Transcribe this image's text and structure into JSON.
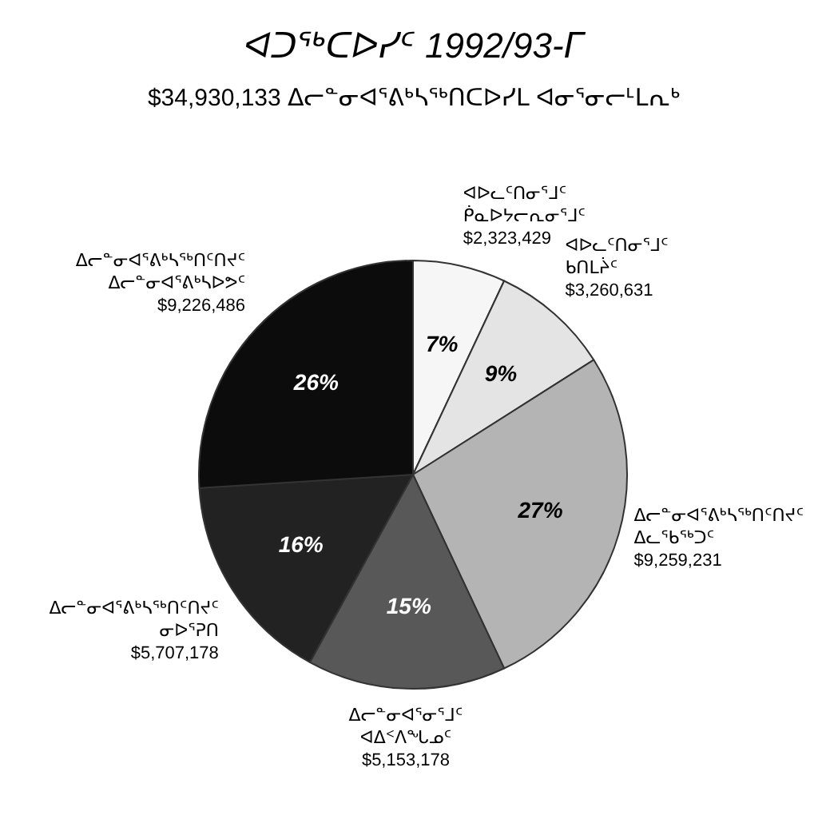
{
  "chart_data": {
    "type": "pie",
    "title": "ᐊᑐᖅᑕᐅᓯᑦ 1992/93-ᒥ",
    "subtitle": "$34,930,133 ᐃᓕᓐᓂᐊᕐᕕᒃᓴᖅᑎᑕᐅᓯᒪ ᐊᓂᕐᓂᓕᒻᒪᕆᒃ",
    "categories": [
      "ᐊᐅᓚᑦᑎᓂᕐᒧᑦ\nᑮᓇᐅᔭᓕᕆᓂᕐᒧᑦ\n$2,323,429",
      "ᐊᐅᓚᑦᑎᓂᕐᒧᑦ\nᑲᑎᒪᔩᑦ\n$3,260,631",
      "ᐃᓕᓐᓂᐊᕐᕕᒃᓴᖅᑎᑦᑎᔪᑦ\nᐃᓚᖃᖅᑐᑦ\n$9,259,231",
      "ᐃᓕᓐᓂᐊᕐᓂᕐᒧᑦ\nᐊᐃᑉᐱᖓᓄᑦ\n$5,153,178",
      "ᐃᓕᓐᓂᐊᕐᕕᒃᓴᖅᑎᑦᑎᔪᑦ\nᓂᐅᕐᕈᑎ\n$5,707,178",
      "ᐃᓕᓐᓂᐊᕐᕕᒃᓴᖅᑎᑦᑎᔪᑦ\nᐃᓕᓐᓂᐊᕐᕕᒃᓴᐅᕗᑦ\n$9,226,486"
    ],
    "values": [
      7,
      9,
      27,
      15,
      16,
      26
    ],
    "value_labels": [
      "7%",
      "9%",
      "27%",
      "15%",
      "16%",
      "26%"
    ],
    "colors": [
      "#f6f6f6",
      "#e4e4e4",
      "#b4b4b4",
      "#585858",
      "#222222",
      "#0c0c0c"
    ],
    "legend": false
  }
}
